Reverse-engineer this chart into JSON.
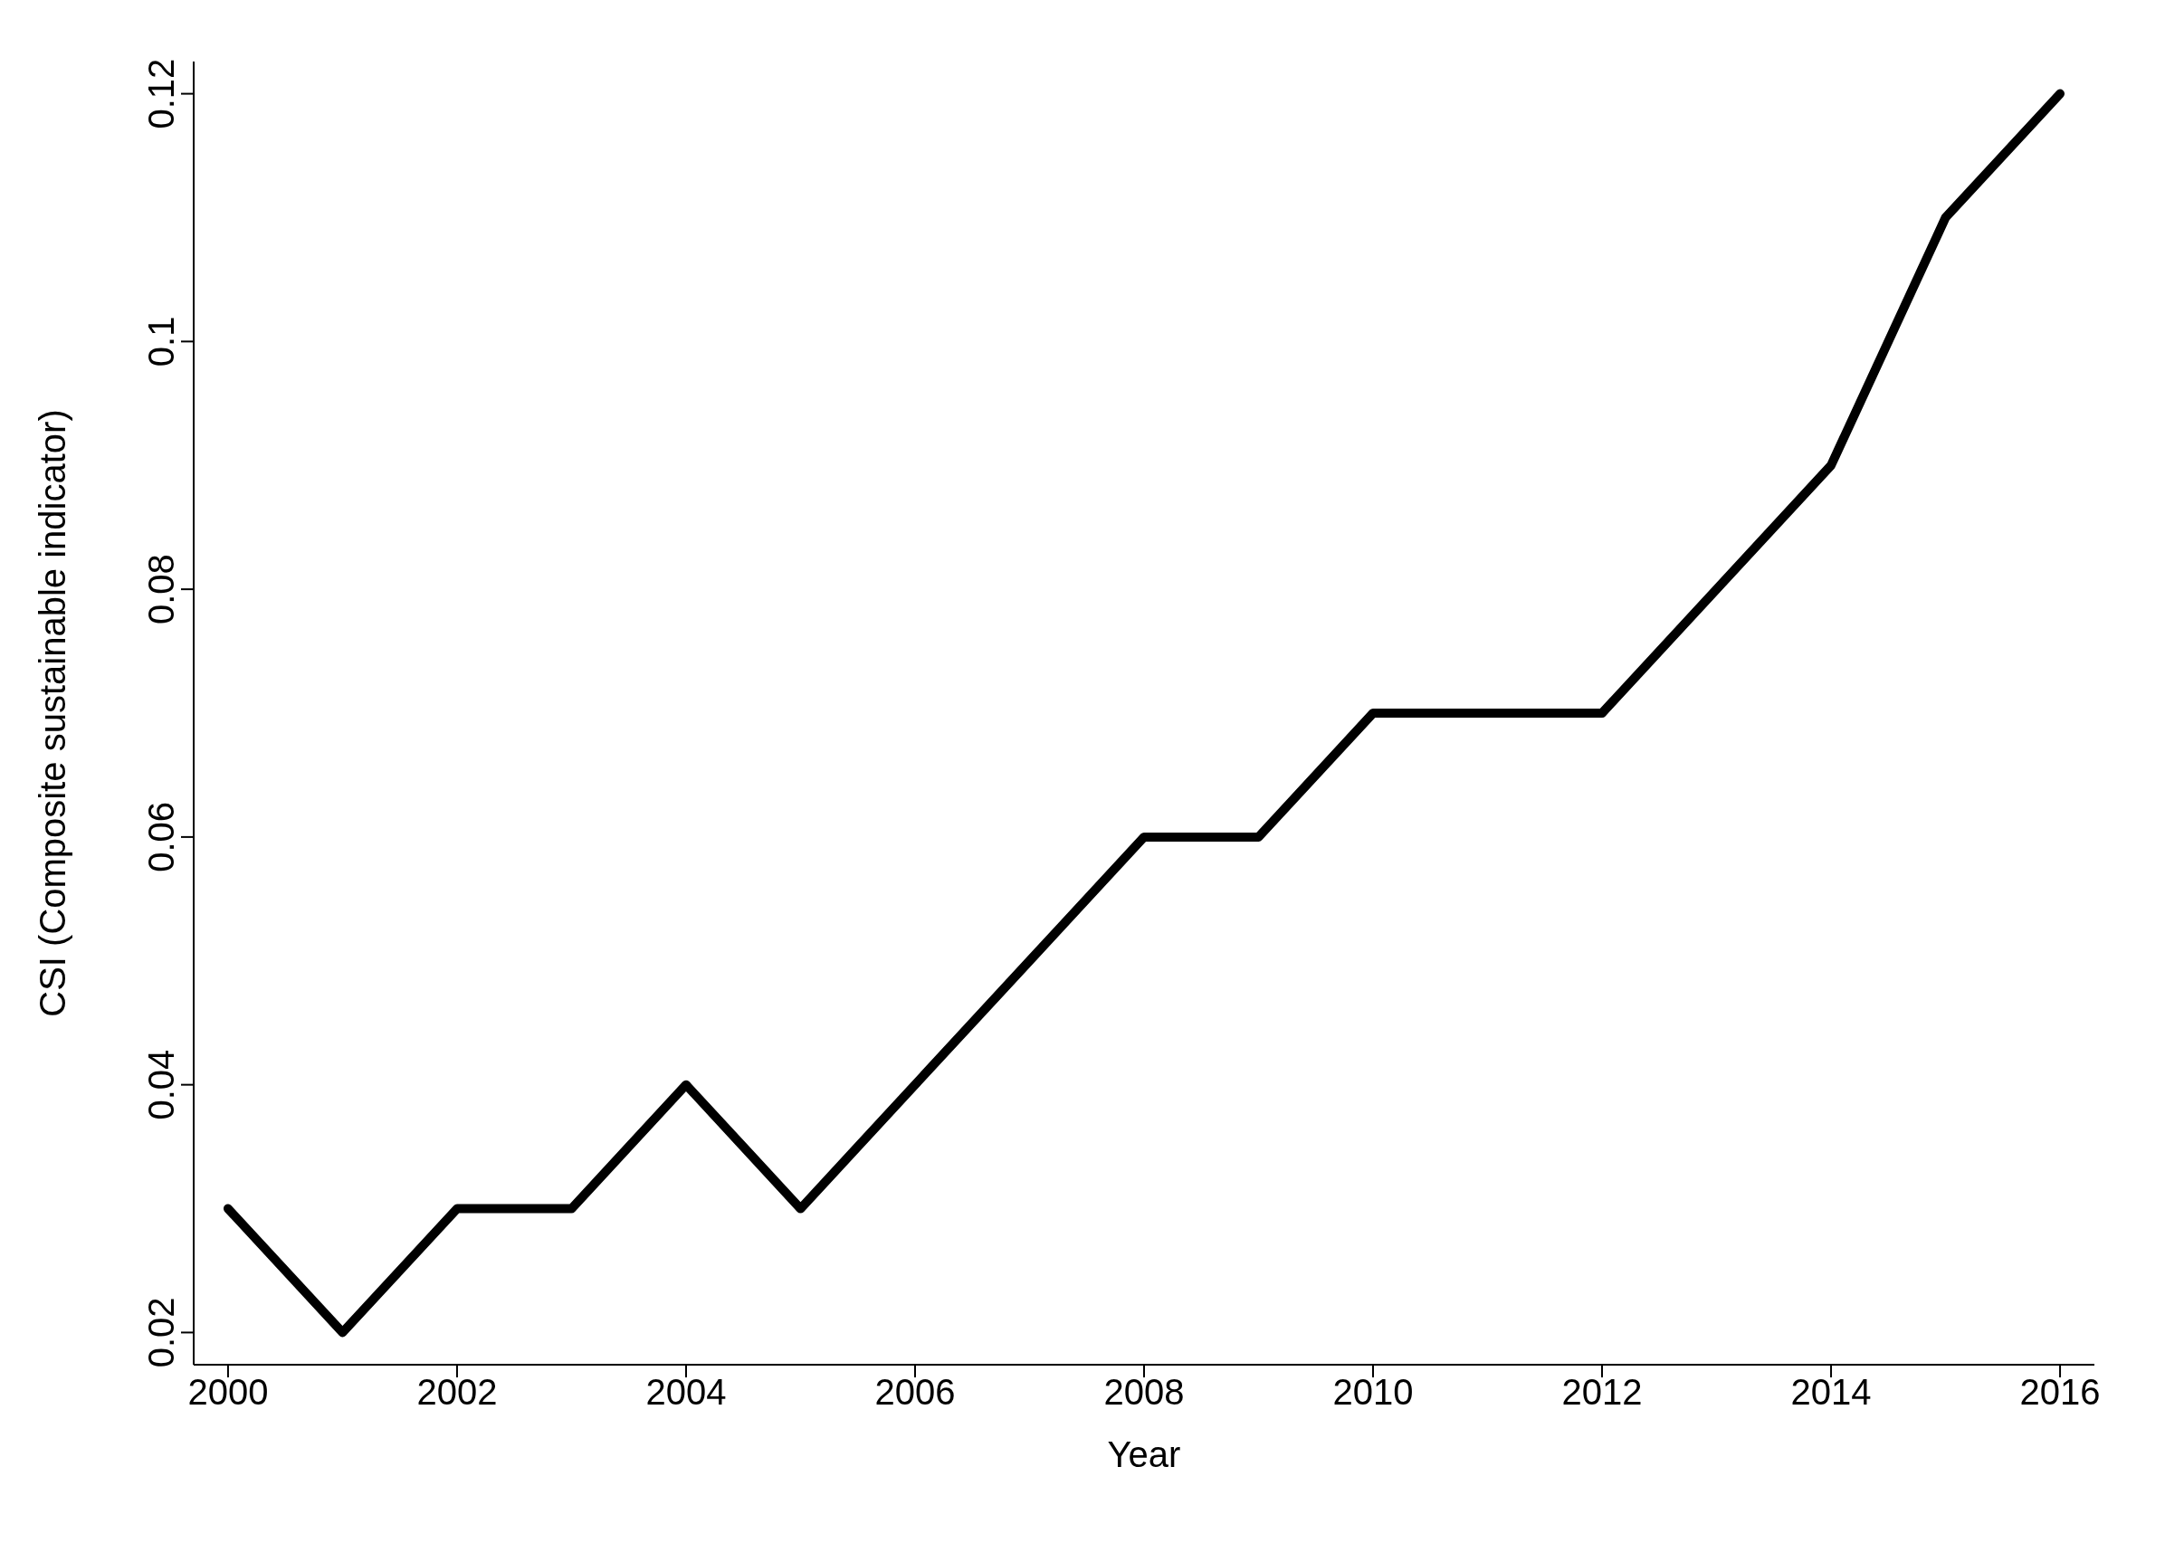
{
  "chart_data": {
    "type": "line",
    "xlabel": "Year",
    "ylabel": "CSI (Composite sustainable indicator)",
    "x": [
      2000,
      2001,
      2002,
      2003,
      2004,
      2005,
      2006,
      2007,
      2008,
      2009,
      2010,
      2011,
      2012,
      2013,
      2014,
      2015,
      2016
    ],
    "series": [
      {
        "color": "#000000",
        "values": [
          0.03,
          0.02,
          0.03,
          0.03,
          0.04,
          0.03,
          0.04,
          0.05,
          0.06,
          0.06,
          0.07,
          0.07,
          0.07,
          0.08,
          0.09,
          0.11,
          0.12
        ]
      }
    ],
    "xlim": [
      1999.7,
      2016.3
    ],
    "xticks": [
      2000,
      2002,
      2004,
      2006,
      2008,
      2010,
      2012,
      2014,
      2016
    ],
    "ylim": [
      0.0174,
      0.1226
    ],
    "yticks": [
      0.02,
      0.04,
      0.06,
      0.08,
      0.1,
      0.12
    ],
    "grid": false,
    "line_style": "solid"
  }
}
